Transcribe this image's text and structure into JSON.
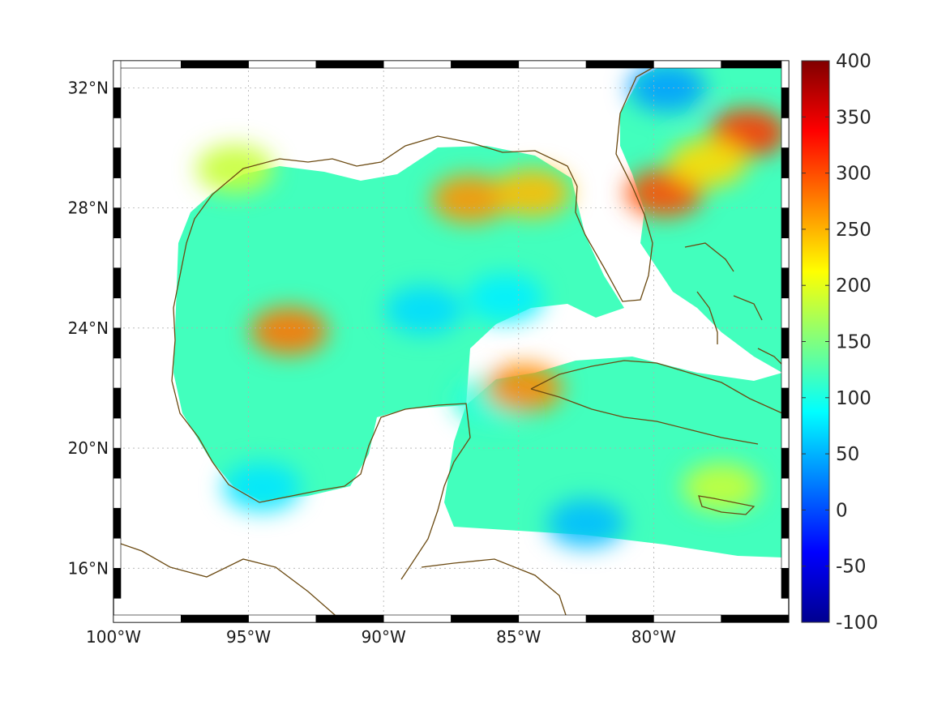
{
  "map": {
    "lon_range": [
      -100,
      -75
    ],
    "lat_range": [
      14.2,
      32.9
    ],
    "lon_ticks": [
      {
        "value": -100,
        "label": "100°W"
      },
      {
        "value": -95,
        "label": "95°W"
      },
      {
        "value": -90,
        "label": "90°W"
      },
      {
        "value": -85,
        "label": "85°W"
      },
      {
        "value": -80,
        "label": "80°W"
      }
    ],
    "lat_ticks": [
      {
        "value": 32,
        "label": "32°N"
      },
      {
        "value": 28,
        "label": "28°N"
      },
      {
        "value": 24,
        "label": "24°N"
      },
      {
        "value": 20,
        "label": "20°N"
      },
      {
        "value": 16,
        "label": "16°N"
      }
    ],
    "grid": true,
    "coastline_color": "#6b4a12"
  },
  "colorbar": {
    "range": [
      -100,
      400
    ],
    "colormap": "jet",
    "ticks": [
      {
        "value": 400,
        "label": "400"
      },
      {
        "value": 350,
        "label": "350"
      },
      {
        "value": 300,
        "label": "300"
      },
      {
        "value": 250,
        "label": "250"
      },
      {
        "value": 200,
        "label": "200"
      },
      {
        "value": 150,
        "label": "150"
      },
      {
        "value": 100,
        "label": "100"
      },
      {
        "value": 50,
        "label": "50"
      },
      {
        "value": 0,
        "label": "0"
      },
      {
        "value": -50,
        "label": "-50"
      },
      {
        "value": -100,
        "label": "-100"
      }
    ]
  },
  "field": {
    "background_value": 120,
    "features": [
      {
        "lon": -93.5,
        "lat": 23.9,
        "value": 280
      },
      {
        "lon": -86.8,
        "lat": 28.3,
        "value": 265
      },
      {
        "lon": -84.5,
        "lat": 28.5,
        "value": 245
      },
      {
        "lon": -79.6,
        "lat": 28.5,
        "value": 300
      },
      {
        "lon": -76.5,
        "lat": 30.5,
        "value": 310
      },
      {
        "lon": -78.0,
        "lat": 29.5,
        "value": 230
      },
      {
        "lon": -79.5,
        "lat": 32.0,
        "value": 40
      },
      {
        "lon": -88.5,
        "lat": 24.6,
        "value": 70
      },
      {
        "lon": -85.5,
        "lat": 25.0,
        "value": 80
      },
      {
        "lon": -82.5,
        "lat": 17.5,
        "value": 55
      },
      {
        "lon": -94.5,
        "lat": 18.7,
        "value": 75
      },
      {
        "lon": -95.5,
        "lat": 29.3,
        "value": 185
      },
      {
        "lon": -77.5,
        "lat": 18.7,
        "value": 185
      },
      {
        "lon": -86.0,
        "lat": 21.6,
        "value": 105
      },
      {
        "lon": -84.8,
        "lat": 22.0,
        "value": 270
      }
    ]
  }
}
